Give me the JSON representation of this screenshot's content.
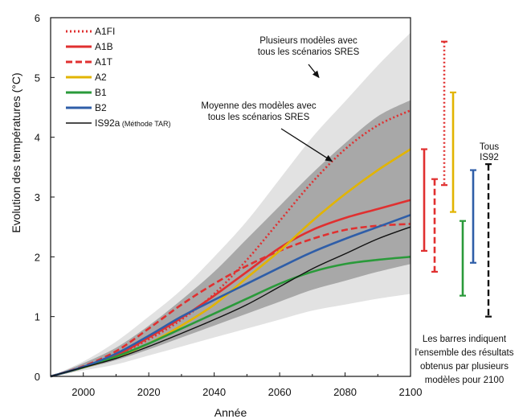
{
  "chart_data": {
    "type": "line",
    "xlabel": "Année",
    "ylabel": "Evolution des températures (°C)",
    "xlim": [
      1990,
      2100
    ],
    "ylim": [
      0,
      6
    ],
    "xticks": [
      2000,
      2020,
      2040,
      2060,
      2080,
      2100
    ],
    "yticks": [
      0,
      1,
      2,
      3,
      4,
      5,
      6
    ],
    "grid": false,
    "legend": "top-left",
    "envelopes": [
      {
        "name": "Plusieurs modèles avec tous les scénarios SRES",
        "color": "#e2e2e2",
        "x": [
          1990,
          2000,
          2010,
          2020,
          2030,
          2040,
          2050,
          2060,
          2070,
          2080,
          2090,
          2100
        ],
        "upper": [
          0.0,
          0.25,
          0.58,
          1.0,
          1.45,
          2.0,
          2.6,
          3.3,
          4.0,
          4.6,
          5.2,
          5.75
        ],
        "lower": [
          0.0,
          0.1,
          0.2,
          0.35,
          0.5,
          0.65,
          0.8,
          0.95,
          1.1,
          1.2,
          1.3,
          1.38
        ]
      },
      {
        "name": "Moyenne des modèles avec tous les scénarios SRES",
        "color": "#a8a8a8",
        "x": [
          1990,
          2000,
          2010,
          2020,
          2030,
          2040,
          2050,
          2060,
          2070,
          2080,
          2090,
          2100
        ],
        "upper": [
          0.0,
          0.22,
          0.48,
          0.85,
          1.28,
          1.75,
          2.3,
          2.85,
          3.4,
          3.9,
          4.35,
          4.62
        ],
        "lower": [
          0.0,
          0.13,
          0.27,
          0.45,
          0.65,
          0.85,
          1.05,
          1.25,
          1.45,
          1.6,
          1.75,
          1.88
        ]
      }
    ],
    "series": [
      {
        "name": "A1FI",
        "color": "#e03030",
        "dash": "dot",
        "x": [
          1990,
          2000,
          2010,
          2020,
          2030,
          2040,
          2050,
          2060,
          2070,
          2080,
          2090,
          2100
        ],
        "y": [
          0.0,
          0.15,
          0.35,
          0.62,
          0.95,
          1.38,
          1.95,
          2.6,
          3.25,
          3.8,
          4.2,
          4.45
        ]
      },
      {
        "name": "A1B",
        "color": "#e03030",
        "dash": "solid",
        "x": [
          1990,
          2000,
          2010,
          2020,
          2030,
          2040,
          2050,
          2060,
          2070,
          2080,
          2090,
          2100
        ],
        "y": [
          0.0,
          0.15,
          0.35,
          0.65,
          0.98,
          1.35,
          1.75,
          2.15,
          2.45,
          2.65,
          2.8,
          2.95
        ]
      },
      {
        "name": "A1T",
        "color": "#e03030",
        "dash": "dash",
        "x": [
          1990,
          2000,
          2010,
          2020,
          2030,
          2040,
          2050,
          2060,
          2070,
          2080,
          2090,
          2100
        ],
        "y": [
          0.0,
          0.17,
          0.42,
          0.8,
          1.2,
          1.55,
          1.85,
          2.1,
          2.3,
          2.45,
          2.52,
          2.55
        ]
      },
      {
        "name": "A2",
        "color": "#e2b400",
        "dash": "solid",
        "x": [
          1990,
          2000,
          2010,
          2020,
          2030,
          2040,
          2050,
          2060,
          2070,
          2080,
          2090,
          2100
        ],
        "y": [
          0.0,
          0.15,
          0.32,
          0.55,
          0.85,
          1.2,
          1.65,
          2.1,
          2.6,
          3.05,
          3.45,
          3.8
        ]
      },
      {
        "name": "B1",
        "color": "#2a9a3a",
        "dash": "solid",
        "x": [
          1990,
          2000,
          2010,
          2020,
          2030,
          2040,
          2050,
          2060,
          2070,
          2080,
          2090,
          2100
        ],
        "y": [
          0.0,
          0.15,
          0.33,
          0.55,
          0.8,
          1.05,
          1.3,
          1.55,
          1.75,
          1.88,
          1.95,
          2.0
        ]
      },
      {
        "name": "B2",
        "color": "#2f5ea8",
        "dash": "solid",
        "x": [
          1990,
          2000,
          2010,
          2020,
          2030,
          2040,
          2050,
          2060,
          2070,
          2080,
          2090,
          2100
        ],
        "y": [
          0.0,
          0.16,
          0.38,
          0.68,
          1.0,
          1.28,
          1.55,
          1.82,
          2.08,
          2.3,
          2.5,
          2.7
        ]
      },
      {
        "name": "IS92a",
        "legend_suffix": "(Méthode TAR)",
        "color": "#111111",
        "dash": "solid",
        "x": [
          1990,
          2000,
          2010,
          2020,
          2030,
          2040,
          2050,
          2060,
          2070,
          2080,
          2090,
          2100
        ],
        "y": [
          0.0,
          0.15,
          0.3,
          0.5,
          0.72,
          0.95,
          1.2,
          1.5,
          1.8,
          2.05,
          2.3,
          2.5
        ]
      }
    ],
    "range_bars": [
      {
        "name": "A1FI",
        "color": "#e03030",
        "dash": "dot",
        "low": 3.2,
        "high": 5.6
      },
      {
        "name": "A1B",
        "color": "#e03030",
        "dash": "solid",
        "low": 2.1,
        "high": 3.8
      },
      {
        "name": "A1T",
        "color": "#e03030",
        "dash": "dash",
        "low": 1.75,
        "high": 3.3
      },
      {
        "name": "A2",
        "color": "#e2b400",
        "dash": "solid",
        "low": 2.75,
        "high": 4.75
      },
      {
        "name": "B1",
        "color": "#2a9a3a",
        "dash": "solid",
        "low": 1.35,
        "high": 2.6
      },
      {
        "name": "B2",
        "color": "#2f5ea8",
        "dash": "solid",
        "low": 1.9,
        "high": 3.45
      },
      {
        "name": "IS92",
        "color": "#111111",
        "dash": "dash",
        "low": 1.0,
        "high": 3.55
      }
    ],
    "annotations": [
      {
        "lines": [
          "Plusieurs modèles avec",
          "tous les scénarios SRES"
        ],
        "arrow_to": [
          2072,
          5.0
        ]
      },
      {
        "lines": [
          "Moyenne des modèles avec",
          "tous les scénarios SRES"
        ],
        "arrow_to": [
          2076,
          3.6
        ]
      }
    ],
    "tous_label": [
      "Tous",
      "IS92"
    ],
    "note": [
      "Les barres indiquent",
      "l'ensemble des résultats",
      "obtenus par plusieurs",
      "modèles pour 2100"
    ]
  }
}
